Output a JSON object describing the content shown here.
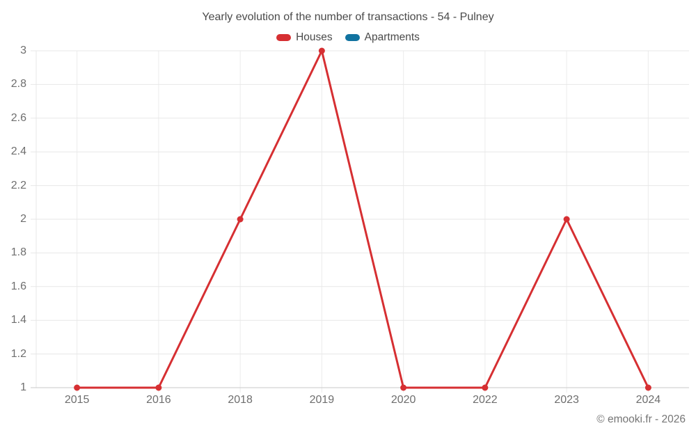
{
  "title": "Yearly evolution of the number of transactions - 54 - Pulney",
  "attribution": "© emooki.fr - 2026",
  "legend": [
    {
      "label": "Houses",
      "color": "#d62f32"
    },
    {
      "label": "Apartments",
      "color": "#1173a0"
    }
  ],
  "chart_data": {
    "type": "line",
    "title": "Yearly evolution of the number of transactions - 54 - Pulney",
    "categories": [
      "2015",
      "2016",
      "2018",
      "2019",
      "2020",
      "2022",
      "2023",
      "2024"
    ],
    "series": [
      {
        "name": "Houses",
        "color": "#d62f32",
        "values": [
          1,
          1,
          2,
          3,
          1,
          1,
          2,
          1
        ]
      },
      {
        "name": "Apartments",
        "color": "#1173a0",
        "values": []
      }
    ],
    "xlabel": "",
    "ylabel": "",
    "ylim": [
      1,
      3
    ],
    "yticks": [
      "3",
      "2.8",
      "2.6",
      "2.4",
      "2.2",
      "2",
      "1.8",
      "1.6",
      "1.4",
      "1.2",
      "1"
    ],
    "grid": true,
    "legend_position": "top"
  }
}
